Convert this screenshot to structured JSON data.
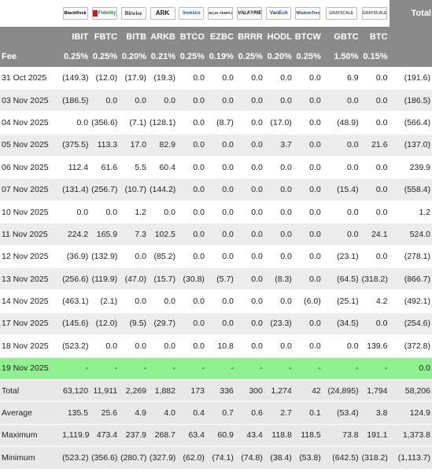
{
  "header": {
    "total_label": "Total",
    "fee_label": "Fee",
    "funds": [
      {
        "ticker": "IBIT",
        "fee": "0.25%",
        "logo_icon": "blackrock-logo-icon",
        "logo_text": "BlackRock"
      },
      {
        "ticker": "FBTC",
        "fee": "0.25%",
        "logo_icon": "fidelity-logo-icon",
        "logo_text": "Fidelity"
      },
      {
        "ticker": "BITB",
        "fee": "0.20%",
        "logo_icon": "bitwise-logo-icon",
        "logo_text": "Bitwise"
      },
      {
        "ticker": "ARKB",
        "fee": "0.21%",
        "logo_icon": "ark-logo-icon",
        "logo_text": "ARK"
      },
      {
        "ticker": "BTCO",
        "fee": "0.25%",
        "logo_icon": "invesco-logo-icon",
        "logo_text": "Invesco"
      },
      {
        "ticker": "EZBC",
        "fee": "0.19%",
        "logo_icon": "franklin-templeton-logo-icon",
        "logo_text": "FRANKLIN TEMPLETON"
      },
      {
        "ticker": "BRRR",
        "fee": "0.25%",
        "logo_icon": "valkyrie-logo-icon",
        "logo_text": "VALKYRIE"
      },
      {
        "ticker": "HODL",
        "fee": "0.20%",
        "logo_icon": "vaneck-logo-icon",
        "logo_text": "VanEck"
      },
      {
        "ticker": "BTCW",
        "fee": "0.25%",
        "logo_icon": "wisdomtree-logo-icon",
        "logo_text": "WisdomTree"
      },
      {
        "ticker": "GBTC",
        "fee": "1.50%",
        "logo_icon": "grayscale-logo-icon",
        "logo_text": "GRAYSCALE"
      },
      {
        "ticker": "BTC",
        "fee": "0.15%",
        "logo_icon": "grayscale-mini-logo-icon",
        "logo_text": "GRAYSCALE"
      }
    ]
  },
  "rows": [
    {
      "date": "31 Oct 2025",
      "values": [
        "(149.3)",
        "(12.0)",
        "(17.9)",
        "(19.3)",
        "0.0",
        "0.0",
        "0.0",
        "0.0",
        "0.0",
        "6.9",
        "0.0"
      ],
      "total": "(191.6)"
    },
    {
      "date": "03 Nov 2025",
      "values": [
        "(186.5)",
        "0.0",
        "0.0",
        "0.0",
        "0.0",
        "0.0",
        "0.0",
        "0.0",
        "0.0",
        "0.0",
        "0.0"
      ],
      "total": "(186.5)"
    },
    {
      "date": "04 Nov 2025",
      "values": [
        "0.0",
        "(356.6)",
        "(7.1)",
        "(128.1)",
        "0.0",
        "(8.7)",
        "0.0",
        "(17.0)",
        "0.0",
        "(48.9)",
        "0.0"
      ],
      "total": "(566.4)"
    },
    {
      "date": "05 Nov 2025",
      "values": [
        "(375.5)",
        "113.3",
        "17.0",
        "82.9",
        "0.0",
        "0.0",
        "0.0",
        "3.7",
        "0.0",
        "0.0",
        "21.6"
      ],
      "total": "(137.0)"
    },
    {
      "date": "06 Nov 2025",
      "values": [
        "112.4",
        "61.6",
        "5.5",
        "60.4",
        "0.0",
        "0.0",
        "0.0",
        "0.0",
        "0.0",
        "0.0",
        "0.0"
      ],
      "total": "239.9"
    },
    {
      "date": "07 Nov 2025",
      "values": [
        "(131.4)",
        "(256.7)",
        "(10.7)",
        "(144.2)",
        "0.0",
        "0.0",
        "0.0",
        "0.0",
        "0.0",
        "(15.4)",
        "0.0"
      ],
      "total": "(558.4)"
    },
    {
      "date": "10 Nov 2025",
      "values": [
        "0.0",
        "0.0",
        "1.2",
        "0.0",
        "0.0",
        "0.0",
        "0.0",
        "0.0",
        "0.0",
        "0.0",
        "0.0"
      ],
      "total": "1.2"
    },
    {
      "date": "11 Nov 2025",
      "values": [
        "224.2",
        "165.9",
        "7.3",
        "102.5",
        "0.0",
        "0.0",
        "0.0",
        "0.0",
        "0.0",
        "0.0",
        "24.1"
      ],
      "total": "524.0"
    },
    {
      "date": "12 Nov 2025",
      "values": [
        "(36.9)",
        "(132.9)",
        "0.0",
        "(85.2)",
        "0.0",
        "0.0",
        "0.0",
        "0.0",
        "0.0",
        "(23.1)",
        "0.0"
      ],
      "total": "(278.1)"
    },
    {
      "date": "13 Nov 2025",
      "values": [
        "(256.6)",
        "(119.9)",
        "(47.0)",
        "(15.7)",
        "(30.8)",
        "(5.7)",
        "0.0",
        "(8.3)",
        "0.0",
        "(64.5)",
        "(318.2)"
      ],
      "total": "(866.7)"
    },
    {
      "date": "14 Nov 2025",
      "values": [
        "(463.1)",
        "(2.1)",
        "0.0",
        "0.0",
        "0.0",
        "0.0",
        "0.0",
        "0.0",
        "(6.0)",
        "(25.1)",
        "4.2"
      ],
      "total": "(492.1)"
    },
    {
      "date": "17 Nov 2025",
      "values": [
        "(145.6)",
        "(12.0)",
        "(9.5)",
        "(29.7)",
        "0.0",
        "0.0",
        "0.0",
        "(23.3)",
        "0.0",
        "(34.5)",
        "0.0"
      ],
      "total": "(254.6)"
    },
    {
      "date": "18 Nov 2025",
      "values": [
        "(523.2)",
        "0.0",
        "0.0",
        "0.0",
        "0.0",
        "10.8",
        "0.0",
        "0.0",
        "0.0",
        "0.0",
        "139.6"
      ],
      "total": "(372.8)"
    },
    {
      "date": "19 Nov 2025",
      "values": [
        "-",
        "-",
        "-",
        "-",
        "-",
        "-",
        "-",
        "-",
        "-",
        "-",
        "-"
      ],
      "total": "0.0",
      "highlight": true
    }
  ],
  "stats": [
    {
      "label": "Total",
      "values": [
        "63,120",
        "11,911",
        "2,269",
        "1,882",
        "173",
        "336",
        "300",
        "1,274",
        "42",
        "(24,895)",
        "1,794"
      ],
      "total": "58,206"
    },
    {
      "label": "Average",
      "values": [
        "135.5",
        "25.6",
        "4.9",
        "4.0",
        "0.4",
        "0.7",
        "0.6",
        "2.7",
        "0.1",
        "(53.4)",
        "3.8"
      ],
      "total": "124.9"
    },
    {
      "label": "Maximum",
      "values": [
        "1,119.9",
        "473.4",
        "237.9",
        "268.7",
        "63.4",
        "60.9",
        "43.4",
        "118.8",
        "118.5",
        "73.8",
        "191.1"
      ],
      "total": "1,373.8"
    },
    {
      "label": "Minimum",
      "values": [
        "(523.2)",
        "(356.6)",
        "(280.7)",
        "(327.9)",
        "(62.0)",
        "(74.1)",
        "(74.8)",
        "(38.4)",
        "(53.8)",
        "(642.5)",
        "(318.2)"
      ],
      "total": "(1,113.7)"
    }
  ],
  "colors": {
    "header_bg": "#8a8a8a",
    "negative": "#d4202a",
    "highlight_row": "#90f090",
    "alt_row": "#ececec"
  }
}
